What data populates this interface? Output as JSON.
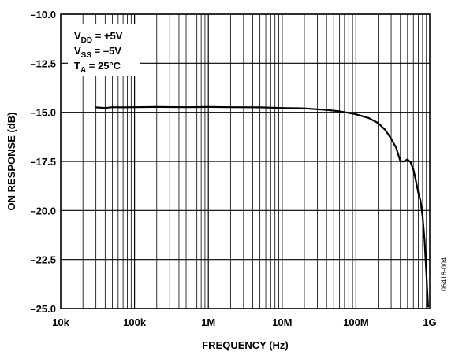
{
  "chart_data": {
    "type": "line",
    "title": "",
    "xlabel": "FREQUENCY (Hz)",
    "ylabel": "ON RESPONSE (dB)",
    "x_scale": "log",
    "xlim": [
      10000,
      1000000000
    ],
    "ylim": [
      -25,
      -10
    ],
    "grid": true,
    "x_ticks": [
      {
        "value": 10000,
        "label": "10k"
      },
      {
        "value": 100000,
        "label": "100k"
      },
      {
        "value": 1000000,
        "label": "1M"
      },
      {
        "value": 10000000,
        "label": "10M"
      },
      {
        "value": 100000000,
        "label": "100M"
      },
      {
        "value": 1000000000,
        "label": "1G"
      }
    ],
    "y_ticks": [
      {
        "value": -10,
        "label": "–10.0"
      },
      {
        "value": -12.5,
        "label": "–12.5"
      },
      {
        "value": -15,
        "label": "–15.0"
      },
      {
        "value": -17.5,
        "label": "–17.5"
      },
      {
        "value": -20,
        "label": "–20.0"
      },
      {
        "value": -22.5,
        "label": "–22.5"
      },
      {
        "value": -25,
        "label": "–25.0"
      }
    ],
    "annotations": [
      {
        "main": "V",
        "sub": "DD",
        "rest": " = +5V"
      },
      {
        "main": "V",
        "sub": "SS",
        "rest": " = –5V"
      },
      {
        "main": "T",
        "sub": "A",
        "rest": " = 25°C"
      }
    ],
    "figure_id": "06418-004",
    "series": [
      {
        "x": [
          30000,
          40000,
          50000,
          70000,
          100000,
          200000,
          500000,
          1000000,
          2000000,
          5000000,
          10000000,
          20000000,
          40000000,
          60000000,
          80000000,
          100000000,
          150000000,
          200000000,
          250000000,
          300000000,
          350000000,
          400000000,
          450000000,
          500000000,
          550000000,
          600000000,
          650000000,
          700000000,
          750000000,
          800000000,
          850000000,
          900000000,
          950000000
        ],
        "y": [
          -14.75,
          -14.78,
          -14.74,
          -14.75,
          -14.74,
          -14.73,
          -14.74,
          -14.73,
          -14.74,
          -14.75,
          -14.78,
          -14.8,
          -14.88,
          -14.95,
          -15.03,
          -15.1,
          -15.3,
          -15.55,
          -15.9,
          -16.35,
          -16.8,
          -17.5,
          -17.5,
          -17.4,
          -17.55,
          -17.9,
          -18.5,
          -19.1,
          -19.5,
          -20.3,
          -21.5,
          -23.2,
          -24.9
        ]
      }
    ]
  }
}
